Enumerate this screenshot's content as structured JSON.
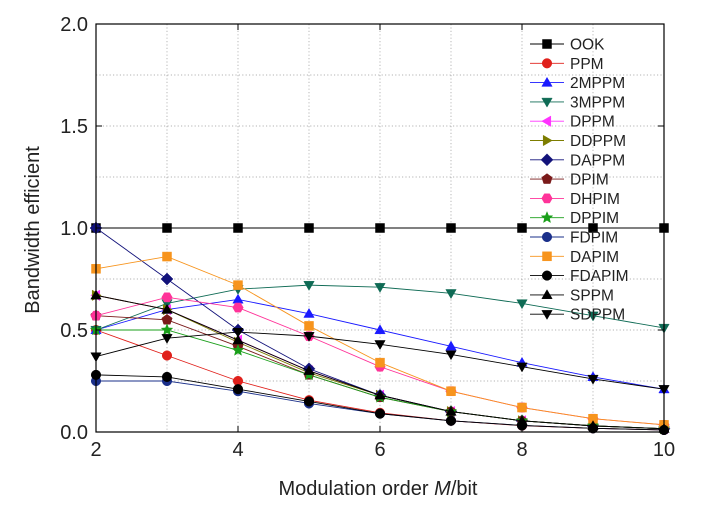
{
  "chart_data": {
    "type": "line",
    "xlabel_parts": [
      "Modulation order ",
      "M",
      "/bit"
    ],
    "ylabel": "Bandwidth efficient",
    "xlim": [
      2,
      10
    ],
    "ylim": [
      0,
      2.0
    ],
    "xticks": [
      "2",
      "4",
      "6",
      "8",
      "10"
    ],
    "yticks": [
      "0.0",
      "0.5",
      "1.0",
      "1.5",
      "2.0"
    ],
    "grid": "dotted",
    "legend_position": "top-right",
    "x": [
      2,
      3,
      4,
      5,
      6,
      7,
      8,
      9,
      10
    ],
    "series": [
      {
        "name": "OOK",
        "color": "#000000",
        "marker": "square",
        "values": [
          1.0,
          1.0,
          1.0,
          1.0,
          1.0,
          1.0,
          1.0,
          1.0,
          1.0
        ]
      },
      {
        "name": "PPM",
        "color": "#e0201b",
        "marker": "circle",
        "values": [
          0.5,
          0.375,
          0.25,
          0.156,
          0.094,
          0.055,
          0.031,
          0.018,
          0.01
        ]
      },
      {
        "name": "2MPPM",
        "color": "#1a1aff",
        "marker": "triangle-up",
        "values": [
          0.5,
          0.6,
          0.65,
          0.58,
          0.5,
          0.42,
          0.34,
          0.27,
          0.21
        ]
      },
      {
        "name": "3MPPM",
        "color": "#0f6b55",
        "marker": "triangle-down",
        "values": [
          0.5,
          0.63,
          0.7,
          0.72,
          0.71,
          0.68,
          0.63,
          0.57,
          0.51
        ]
      },
      {
        "name": "DPPM",
        "color": "#ff33ff",
        "marker": "triangle-left",
        "values": [
          0.67,
          0.6,
          0.45,
          0.3,
          0.18,
          0.1,
          0.055,
          0.03,
          0.016
        ]
      },
      {
        "name": "DDPPM",
        "color": "#7d7d00",
        "marker": "triangle-right",
        "values": [
          0.67,
          0.6,
          0.44,
          0.29,
          0.18,
          0.1,
          0.055,
          0.03,
          0.016
        ]
      },
      {
        "name": "DAPPM",
        "color": "#12127a",
        "marker": "diamond",
        "values": [
          1.0,
          0.75,
          0.5,
          0.31,
          0.18,
          0.1,
          0.055,
          0.03,
          0.016
        ]
      },
      {
        "name": "DPIM",
        "color": "#7a1a1a",
        "marker": "pentagon",
        "values": [
          0.57,
          0.55,
          0.42,
          0.28,
          0.17,
          0.1,
          0.055,
          0.03,
          0.016
        ]
      },
      {
        "name": "DHPIM",
        "color": "#ff3399",
        "marker": "hexagon",
        "values": [
          0.57,
          0.66,
          0.61,
          0.47,
          0.32,
          0.2,
          0.12,
          0.065,
          0.035
        ]
      },
      {
        "name": "DPPIM",
        "color": "#1a9f1a",
        "marker": "star",
        "values": [
          0.5,
          0.5,
          0.4,
          0.28,
          0.17,
          0.1,
          0.055,
          0.03,
          0.016
        ]
      },
      {
        "name": "FDPIM",
        "color": "#1a2f8a",
        "marker": "circle",
        "values": [
          0.25,
          0.25,
          0.2,
          0.14,
          0.09,
          0.055,
          0.032,
          0.018,
          0.01
        ]
      },
      {
        "name": "DAPIM",
        "color": "#f7941d",
        "marker": "square",
        "values": [
          0.8,
          0.86,
          0.72,
          0.52,
          0.34,
          0.2,
          0.12,
          0.065,
          0.035
        ]
      },
      {
        "name": "FDAPIM",
        "color": "#000000",
        "marker": "circle",
        "values": [
          0.28,
          0.27,
          0.21,
          0.15,
          0.09,
          0.055,
          0.032,
          0.018,
          0.01
        ]
      },
      {
        "name": "SPPM",
        "color": "#000000",
        "marker": "triangle-up",
        "values": [
          0.67,
          0.6,
          0.45,
          0.3,
          0.18,
          0.1,
          0.055,
          0.03,
          0.016
        ]
      },
      {
        "name": "SDPPM",
        "color": "#000000",
        "marker": "triangle-down",
        "values": [
          0.37,
          0.46,
          0.49,
          0.47,
          0.43,
          0.38,
          0.32,
          0.26,
          0.21
        ]
      }
    ]
  }
}
